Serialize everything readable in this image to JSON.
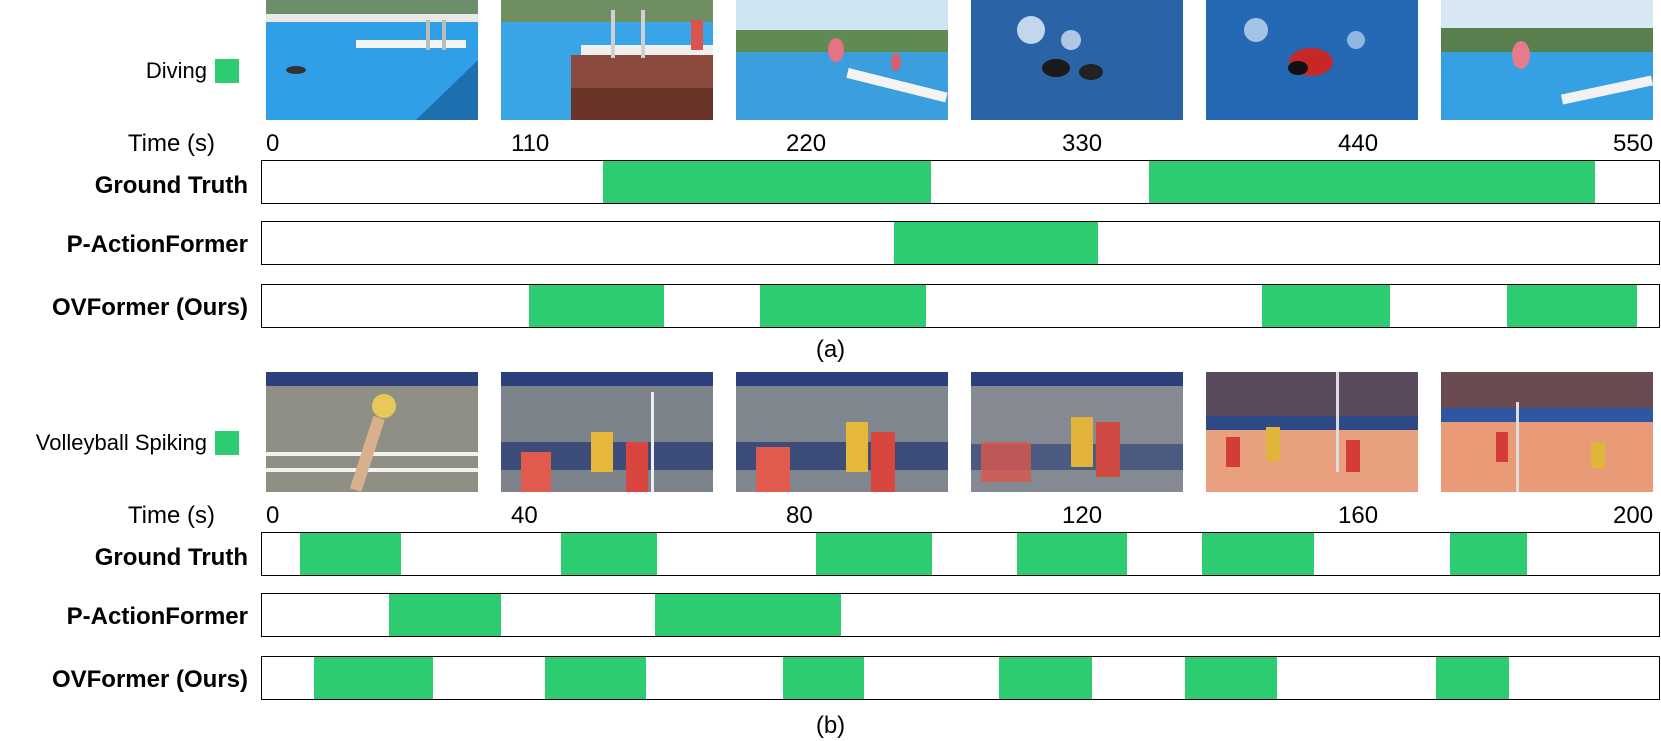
{
  "accent_color": "#2ecc71",
  "panels": [
    {
      "action": "Diving",
      "time_label": "Time (s)",
      "ticks": [
        "0",
        "110",
        "220",
        "330",
        "440",
        "550"
      ],
      "duration": 550,
      "caption": "(a)",
      "frames": [
        "pool-diving-board-scene",
        "pool-diving-board-closeup",
        "diver-mid-air",
        "swimmers-in-splash",
        "swimmer-red-gear",
        "diver-jumping"
      ],
      "rows": [
        {
          "label": "Ground Truth",
          "segments": [
            [
              139,
              273
            ],
            [
              362,
              544
            ]
          ]
        },
        {
          "label": "P-ActionFormer",
          "segments": [
            [
              258,
              341
            ]
          ]
        },
        {
          "label": "OVFormer (Ours)",
          "segments": [
            [
              109,
              164
            ],
            [
              203,
              271
            ],
            [
              408,
              460
            ],
            [
              508,
              567
            ]
          ]
        }
      ]
    },
    {
      "action": "Volleyball Spiking",
      "time_label": "Time (s)",
      "ticks": [
        "0",
        "40",
        "80",
        "120",
        "160",
        "200"
      ],
      "duration": 200,
      "caption": "(b)",
      "frames": [
        "spike-closeup",
        "players-at-net",
        "block-at-net",
        "blurred-spike",
        "court-wide-view",
        "court-far-view"
      ],
      "rows": [
        {
          "label": "Ground Truth",
          "segments": [
            [
              5.6,
              20.6
            ],
            [
              44.4,
              58.6
            ],
            [
              82.2,
              99.4
            ],
            [
              112,
              128.4
            ],
            [
              139.5,
              156.1
            ],
            [
              176.2,
              187.6
            ]
          ]
        },
        {
          "label": "P-ActionFormer",
          "segments": [
            [
              18.8,
              35.4
            ],
            [
              58.3,
              85.9
            ]
          ]
        },
        {
          "label": "OVFormer (Ours)",
          "segments": [
            [
              7.7,
              25.4
            ],
            [
              42.0,
              57.0
            ],
            [
              77.3,
              89.3
            ],
            [
              109.3,
              123.2
            ],
            [
              137.0,
              150.6
            ],
            [
              174.2,
              185.0
            ]
          ]
        }
      ]
    }
  ]
}
